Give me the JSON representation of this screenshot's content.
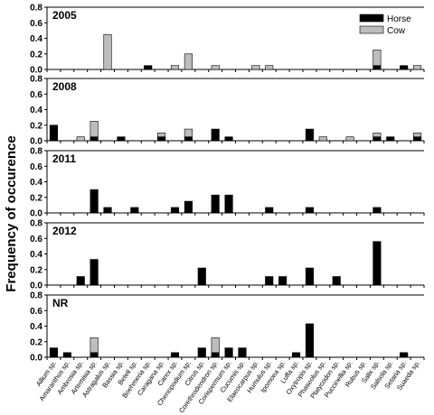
{
  "chart_data": {
    "type": "bar",
    "stacked": true,
    "ylabel": "Frequency of occurence",
    "ylim": [
      0,
      0.8
    ],
    "yticks": [
      "0.0",
      "0.2",
      "0.4",
      "0.6",
      "0.8"
    ],
    "yticks_values": [
      0,
      0.2,
      0.4,
      0.6,
      0.8
    ],
    "grid": false,
    "legend": {
      "placement": "top-right",
      "entries": [
        "Horse",
        "Cow"
      ]
    },
    "colors": {
      "Horse": "#000000",
      "Cow": "#bdbdbd"
    },
    "categories": [
      "Allium sp.",
      "Amaranthus sp.",
      "Ambrosia sp.",
      "Artemisia sp.",
      "Astragalus sp.",
      "Bassia sp.",
      "Beteli sp.",
      "Boehmeria sp.",
      "Caragana sp.",
      "Carex sp.",
      "Chenopodium sp.",
      "Citrus sp.",
      "Corethrodendron sp.",
      "Corispermum sp.",
      "Cucumis sp.",
      "Elaeocarpus sp.",
      "Humulus sp.",
      "Ipomoea sp.",
      "Luffa sp.",
      "Oxytropis sp.",
      "Phaseolus sp.",
      "Platycodon sp.",
      "Puccinellia sp.",
      "Rubus sp.",
      "Salix sp.",
      "Salsola sp.",
      "Setaria sp.",
      "Suaeda sp."
    ],
    "panels": [
      {
        "title": "2005",
        "series": [
          {
            "name": "Horse",
            "values": [
              0,
              0,
              0,
              0,
              0,
              0,
              0,
              0.05,
              0,
              0,
              0,
              0,
              0,
              0,
              0,
              0,
              0,
              0,
              0,
              0,
              0,
              0,
              0,
              0,
              0.05,
              0,
              0.05,
              0
            ]
          },
          {
            "name": "Cow",
            "values": [
              0,
              0,
              0,
              0,
              0.45,
              0,
              0,
              0,
              0,
              0.05,
              0.2,
              0,
              0.05,
              0,
              0,
              0.05,
              0.05,
              0,
              0,
              0,
              0,
              0,
              0,
              0,
              0.2,
              0,
              0,
              0.05
            ]
          }
        ]
      },
      {
        "title": "2008",
        "series": [
          {
            "name": "Horse",
            "values": [
              0.2,
              0,
              0,
              0.05,
              0,
              0.05,
              0,
              0,
              0.05,
              0,
              0.05,
              0,
              0.15,
              0.05,
              0,
              0,
              0,
              0,
              0,
              0.15,
              0,
              0,
              0,
              0,
              0.05,
              0.05,
              0,
              0.05
            ]
          },
          {
            "name": "Cow",
            "values": [
              0,
              0,
              0.05,
              0.2,
              0,
              0,
              0,
              0,
              0.05,
              0,
              0.1,
              0,
              0,
              0,
              0,
              0,
              0,
              0,
              0,
              0,
              0.05,
              0,
              0.05,
              0,
              0.05,
              0,
              0,
              0.05
            ]
          }
        ]
      },
      {
        "title": "2011",
        "series": [
          {
            "name": "Horse",
            "values": [
              0,
              0,
              0,
              0.3,
              0.07,
              0,
              0.07,
              0,
              0,
              0.07,
              0.15,
              0,
              0.23,
              0.23,
              0,
              0,
              0.07,
              0,
              0,
              0.07,
              0,
              0,
              0,
              0,
              0.07,
              0,
              0,
              0
            ]
          },
          {
            "name": "Cow",
            "values": [
              0,
              0,
              0,
              0,
              0,
              0,
              0,
              0,
              0,
              0,
              0,
              0,
              0,
              0,
              0,
              0,
              0,
              0,
              0,
              0,
              0,
              0,
              0,
              0,
              0,
              0,
              0,
              0
            ]
          }
        ]
      },
      {
        "title": "2012",
        "series": [
          {
            "name": "Horse",
            "values": [
              0,
              0,
              0.11,
              0.33,
              0,
              0,
              0,
              0,
              0,
              0,
              0,
              0.22,
              0,
              0,
              0,
              0,
              0.11,
              0.11,
              0,
              0.22,
              0,
              0.11,
              0,
              0,
              0.56,
              0,
              0,
              0
            ]
          },
          {
            "name": "Cow",
            "values": [
              0,
              0,
              0,
              0,
              0,
              0,
              0,
              0,
              0,
              0,
              0,
              0,
              0,
              0,
              0,
              0,
              0,
              0,
              0,
              0,
              0,
              0,
              0,
              0,
              0,
              0,
              0,
              0
            ]
          }
        ]
      },
      {
        "title": "NR",
        "series": [
          {
            "name": "Horse",
            "values": [
              0.12,
              0.06,
              0,
              0.06,
              0,
              0,
              0,
              0,
              0,
              0.06,
              0,
              0.12,
              0.06,
              0.12,
              0.12,
              0,
              0,
              0,
              0.06,
              0.43,
              0,
              0,
              0,
              0,
              0,
              0,
              0.06,
              0
            ]
          },
          {
            "name": "Cow",
            "values": [
              0,
              0,
              0,
              0.19,
              0,
              0,
              0,
              0,
              0,
              0,
              0,
              0,
              0.19,
              0,
              0,
              0,
              0,
              0,
              0,
              0,
              0,
              0,
              0,
              0,
              0,
              0,
              0,
              0
            ]
          }
        ]
      }
    ]
  }
}
